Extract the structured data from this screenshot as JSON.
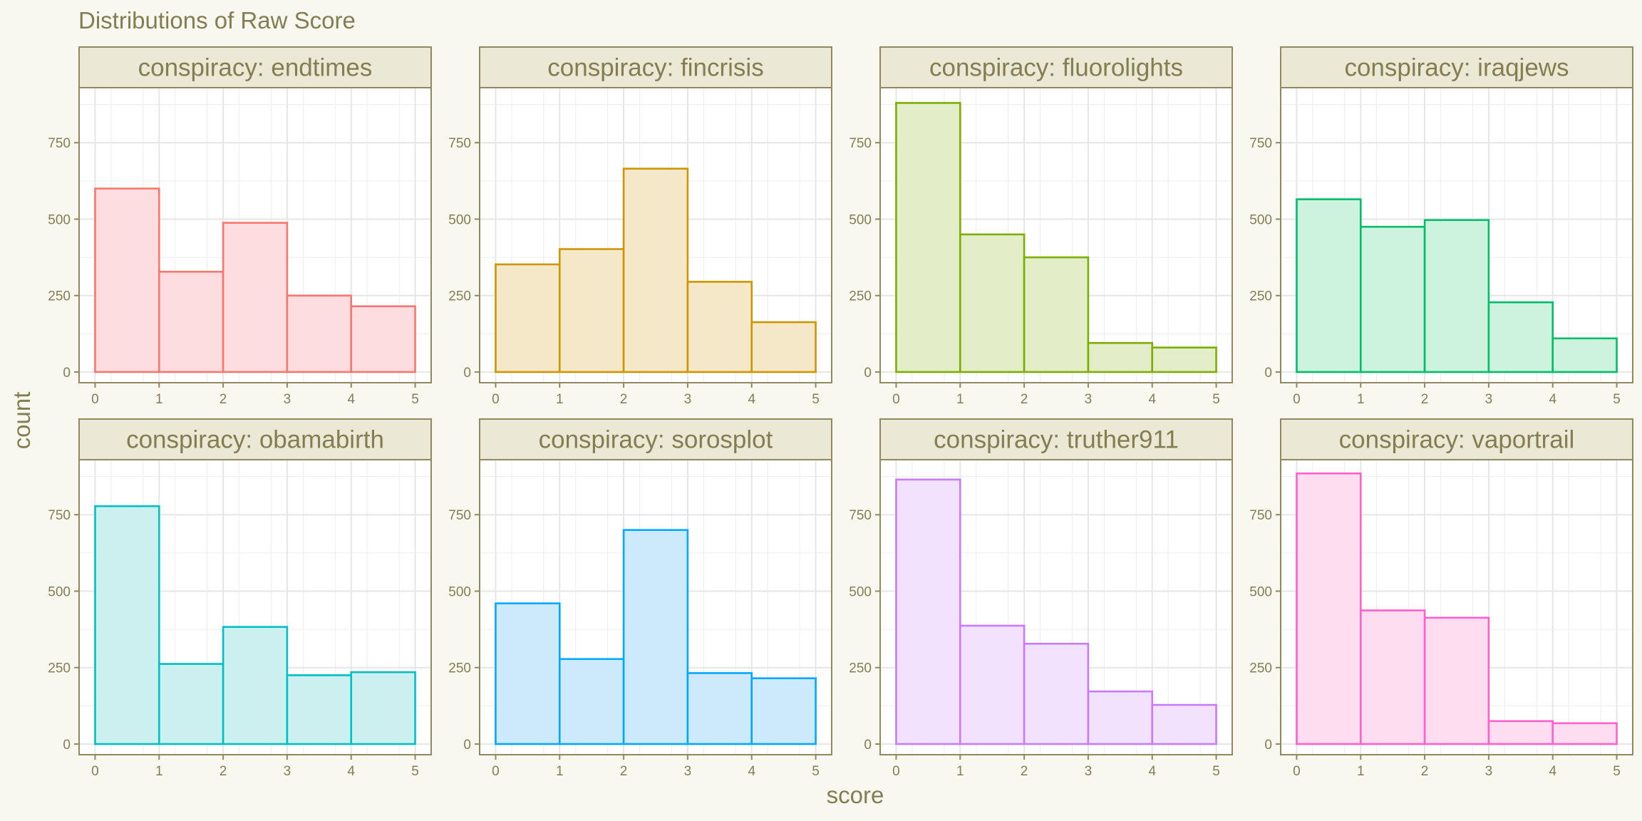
{
  "chart_data": {
    "type": "bar",
    "title": "Distributions of Raw Score",
    "xlabel": "score",
    "ylabel": "count",
    "xlim": [
      -0.25,
      5.25
    ],
    "ylim": [
      -35,
      930
    ],
    "x_ticks": [
      0,
      1,
      2,
      3,
      4,
      5
    ],
    "y_ticks": [
      0,
      250,
      500,
      750
    ],
    "bin_edges": [
      0,
      1,
      2,
      3,
      4,
      5
    ],
    "facet_prefix": "conspiracy: ",
    "grid": true,
    "legend": "none",
    "panels": [
      {
        "name": "endtimes",
        "color": "#F8766D",
        "fill": "#FEDDE0",
        "values": [
          600,
          328,
          488,
          250,
          215
        ]
      },
      {
        "name": "fincrisis",
        "color": "#CD9600",
        "fill": "#F5E8C9",
        "values": [
          352,
          402,
          665,
          295,
          163
        ]
      },
      {
        "name": "fluorolights",
        "color": "#7CAE00",
        "fill": "#E3EDC8",
        "values": [
          880,
          450,
          375,
          95,
          80
        ]
      },
      {
        "name": "iraqjews",
        "color": "#00BE67",
        "fill": "#CDF3DE",
        "values": [
          565,
          475,
          497,
          228,
          110
        ]
      },
      {
        "name": "obamabirth",
        "color": "#00BFC4",
        "fill": "#CCF0F0",
        "values": [
          778,
          262,
          383,
          225,
          235
        ]
      },
      {
        "name": "sorosplot",
        "color": "#00A9FF",
        "fill": "#CCEAFB",
        "values": [
          460,
          278,
          700,
          232,
          215
        ]
      },
      {
        "name": "truther911",
        "color": "#C77CFF",
        "fill": "#F2E2FD",
        "values": [
          865,
          387,
          328,
          172,
          128
        ]
      },
      {
        "name": "vaportrail",
        "color": "#FF61CC",
        "fill": "#FFDDF0",
        "values": [
          885,
          437,
          413,
          75,
          68
        ]
      }
    ]
  }
}
